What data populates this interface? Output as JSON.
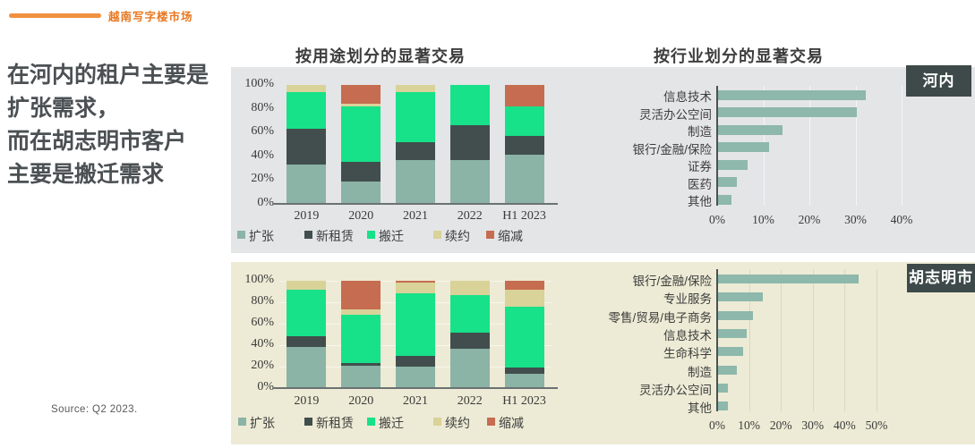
{
  "header": {
    "eyebrow": "越南写字楼市场",
    "accent_color": "#F0913F",
    "eyebrow_color": "#E8761F"
  },
  "headline": {
    "lines": [
      "在河内的租户主要是",
      "扩张需求，",
      "而在胡志明市客户",
      "主要是搬迁需求"
    ]
  },
  "titles": {
    "by_use": "按用途划分的显著交易",
    "by_industry": "按行业划分的显著交易"
  },
  "badges": {
    "hanoi": "河内",
    "hcmc": "胡志明市"
  },
  "source": {
    "text": "Source: Q2 2023."
  },
  "colors": {
    "panel_hanoi_bg": "#E4E5E7",
    "panel_hcmc_bg": "#EDEBD5",
    "badge_bg": "#3E4A49",
    "expansion": "#8BB3A6",
    "new_lease": "#414E4D",
    "relocation": "#17E189",
    "renewal": "#D9D299",
    "contraction": "#C66C50",
    "industry_bar": "#8DB8AB",
    "axis_line": "#6B7272"
  },
  "chart_data": [
    {
      "type": "bar",
      "subtype": "stacked-percent",
      "city": "河内",
      "title": "按用途划分的显著交易",
      "categories": [
        "2019",
        "2020",
        "2021",
        "2022",
        "H1 2023"
      ],
      "series": [
        {
          "name": "扩张",
          "key": "expansion",
          "color": "#8BB3A6",
          "values": [
            33,
            19,
            37,
            37,
            41
          ]
        },
        {
          "name": "新租赁",
          "key": "new-lease",
          "color": "#414E4D",
          "values": [
            30,
            16,
            15,
            29,
            16
          ]
        },
        {
          "name": "搬迁",
          "key": "relocation",
          "color": "#17E189",
          "values": [
            31,
            47,
            42,
            34,
            25
          ]
        },
        {
          "name": "续约",
          "key": "renewal",
          "color": "#D9D299",
          "values": [
            6,
            2,
            6,
            0,
            0
          ]
        },
        {
          "name": "缩减",
          "key": "contraction",
          "color": "#C66C50",
          "values": [
            0,
            16,
            0,
            0,
            18
          ]
        }
      ],
      "ylim": [
        0,
        100
      ],
      "yticks": [
        "0%",
        "20%",
        "40%",
        "60%",
        "80%",
        "100%"
      ],
      "legend_position": "bottom"
    },
    {
      "type": "bar",
      "subtype": "horizontal",
      "city": "河内",
      "title": "按行业划分的显著交易",
      "categories": [
        "信息技术",
        "灵活办公空间",
        "制造",
        "银行/金融/保险",
        "证券",
        "医药",
        "其他"
      ],
      "values": [
        32,
        30,
        14,
        11,
        6.5,
        4,
        3
      ],
      "bar_color": "#8DB8AB",
      "xlim": [
        0,
        40
      ],
      "xticks": [
        "0%",
        "10%",
        "20%",
        "30%",
        "40%"
      ],
      "grid": "vertical"
    },
    {
      "type": "bar",
      "subtype": "stacked-percent",
      "city": "胡志明市",
      "title": "按用途划分的显著交易",
      "categories": [
        "2019",
        "2020",
        "2021",
        "2022",
        "H1 2023"
      ],
      "series": [
        {
          "name": "扩张",
          "key": "expansion",
          "color": "#8BB3A6",
          "values": [
            38,
            21,
            20,
            37,
            13
          ]
        },
        {
          "name": "新租赁",
          "key": "new-lease",
          "color": "#414E4D",
          "values": [
            10,
            2,
            10,
            15,
            6
          ]
        },
        {
          "name": "搬迁",
          "key": "relocation",
          "color": "#17E189",
          "values": [
            44,
            45,
            58,
            35,
            57
          ]
        },
        {
          "name": "续约",
          "key": "renewal",
          "color": "#D9D299",
          "values": [
            8,
            5,
            10,
            13,
            16
          ]
        },
        {
          "name": "缩减",
          "key": "contraction",
          "color": "#C66C50",
          "values": [
            0,
            27,
            2,
            0,
            8
          ]
        }
      ],
      "ylim": [
        0,
        100
      ],
      "yticks": [
        "0%",
        "20%",
        "40%",
        "60%",
        "80%",
        "100%"
      ],
      "legend_position": "bottom"
    },
    {
      "type": "bar",
      "subtype": "horizontal",
      "city": "胡志明市",
      "title": "按行业划分的显著交易",
      "categories": [
        "银行/金融/保险",
        "专业服务",
        "零售/贸易/电子商务",
        "信息技术",
        "生命科学",
        "制造",
        "灵活办公空间",
        "其他"
      ],
      "values": [
        44,
        14,
        11,
        9,
        8,
        6,
        3,
        3
      ],
      "bar_color": "#8DB8AB",
      "xlim": [
        0,
        50
      ],
      "xticks": [
        "0%",
        "10%",
        "20%",
        "30%",
        "40%",
        "50%"
      ],
      "grid": "vertical"
    }
  ]
}
